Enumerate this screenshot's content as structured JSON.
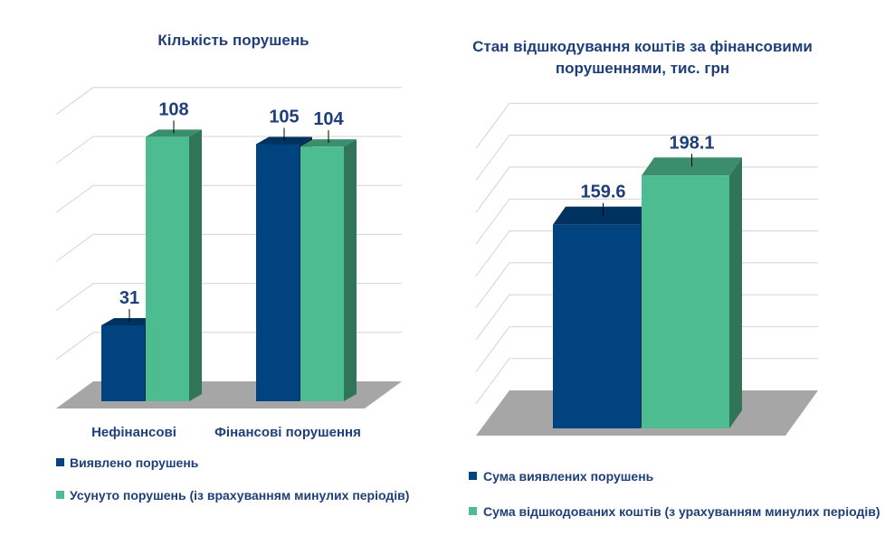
{
  "chart_data": [
    {
      "type": "bar",
      "title": "Кількість порушень",
      "categories": [
        "Нефінансові",
        "Фінансові порушення"
      ],
      "series": [
        {
          "name": "Виявлено порушень",
          "values": [
            31,
            105
          ],
          "color": "#00437f"
        },
        {
          "name": "Усунуто порушень (із врахуванням минулих періодів)",
          "values": [
            108,
            104
          ],
          "color": "#4dbd91"
        }
      ],
      "ylim": [
        0,
        120
      ],
      "grid": true,
      "legend": "bottom"
    },
    {
      "type": "bar",
      "title": "Стан відшкодування коштів за фінансовими порушеннями, тис. грн",
      "categories": [
        ""
      ],
      "series": [
        {
          "name": "Сума виявлених порушень",
          "values": [
            159.6
          ],
          "color": "#00437f"
        },
        {
          "name": "Сума відшкодованих коштів (з урахуванням минулих періодів)",
          "values": [
            198.1
          ],
          "color": "#4dbd91"
        }
      ],
      "ylim": [
        0,
        225
      ],
      "grid": true,
      "legend": "bottom"
    }
  ]
}
